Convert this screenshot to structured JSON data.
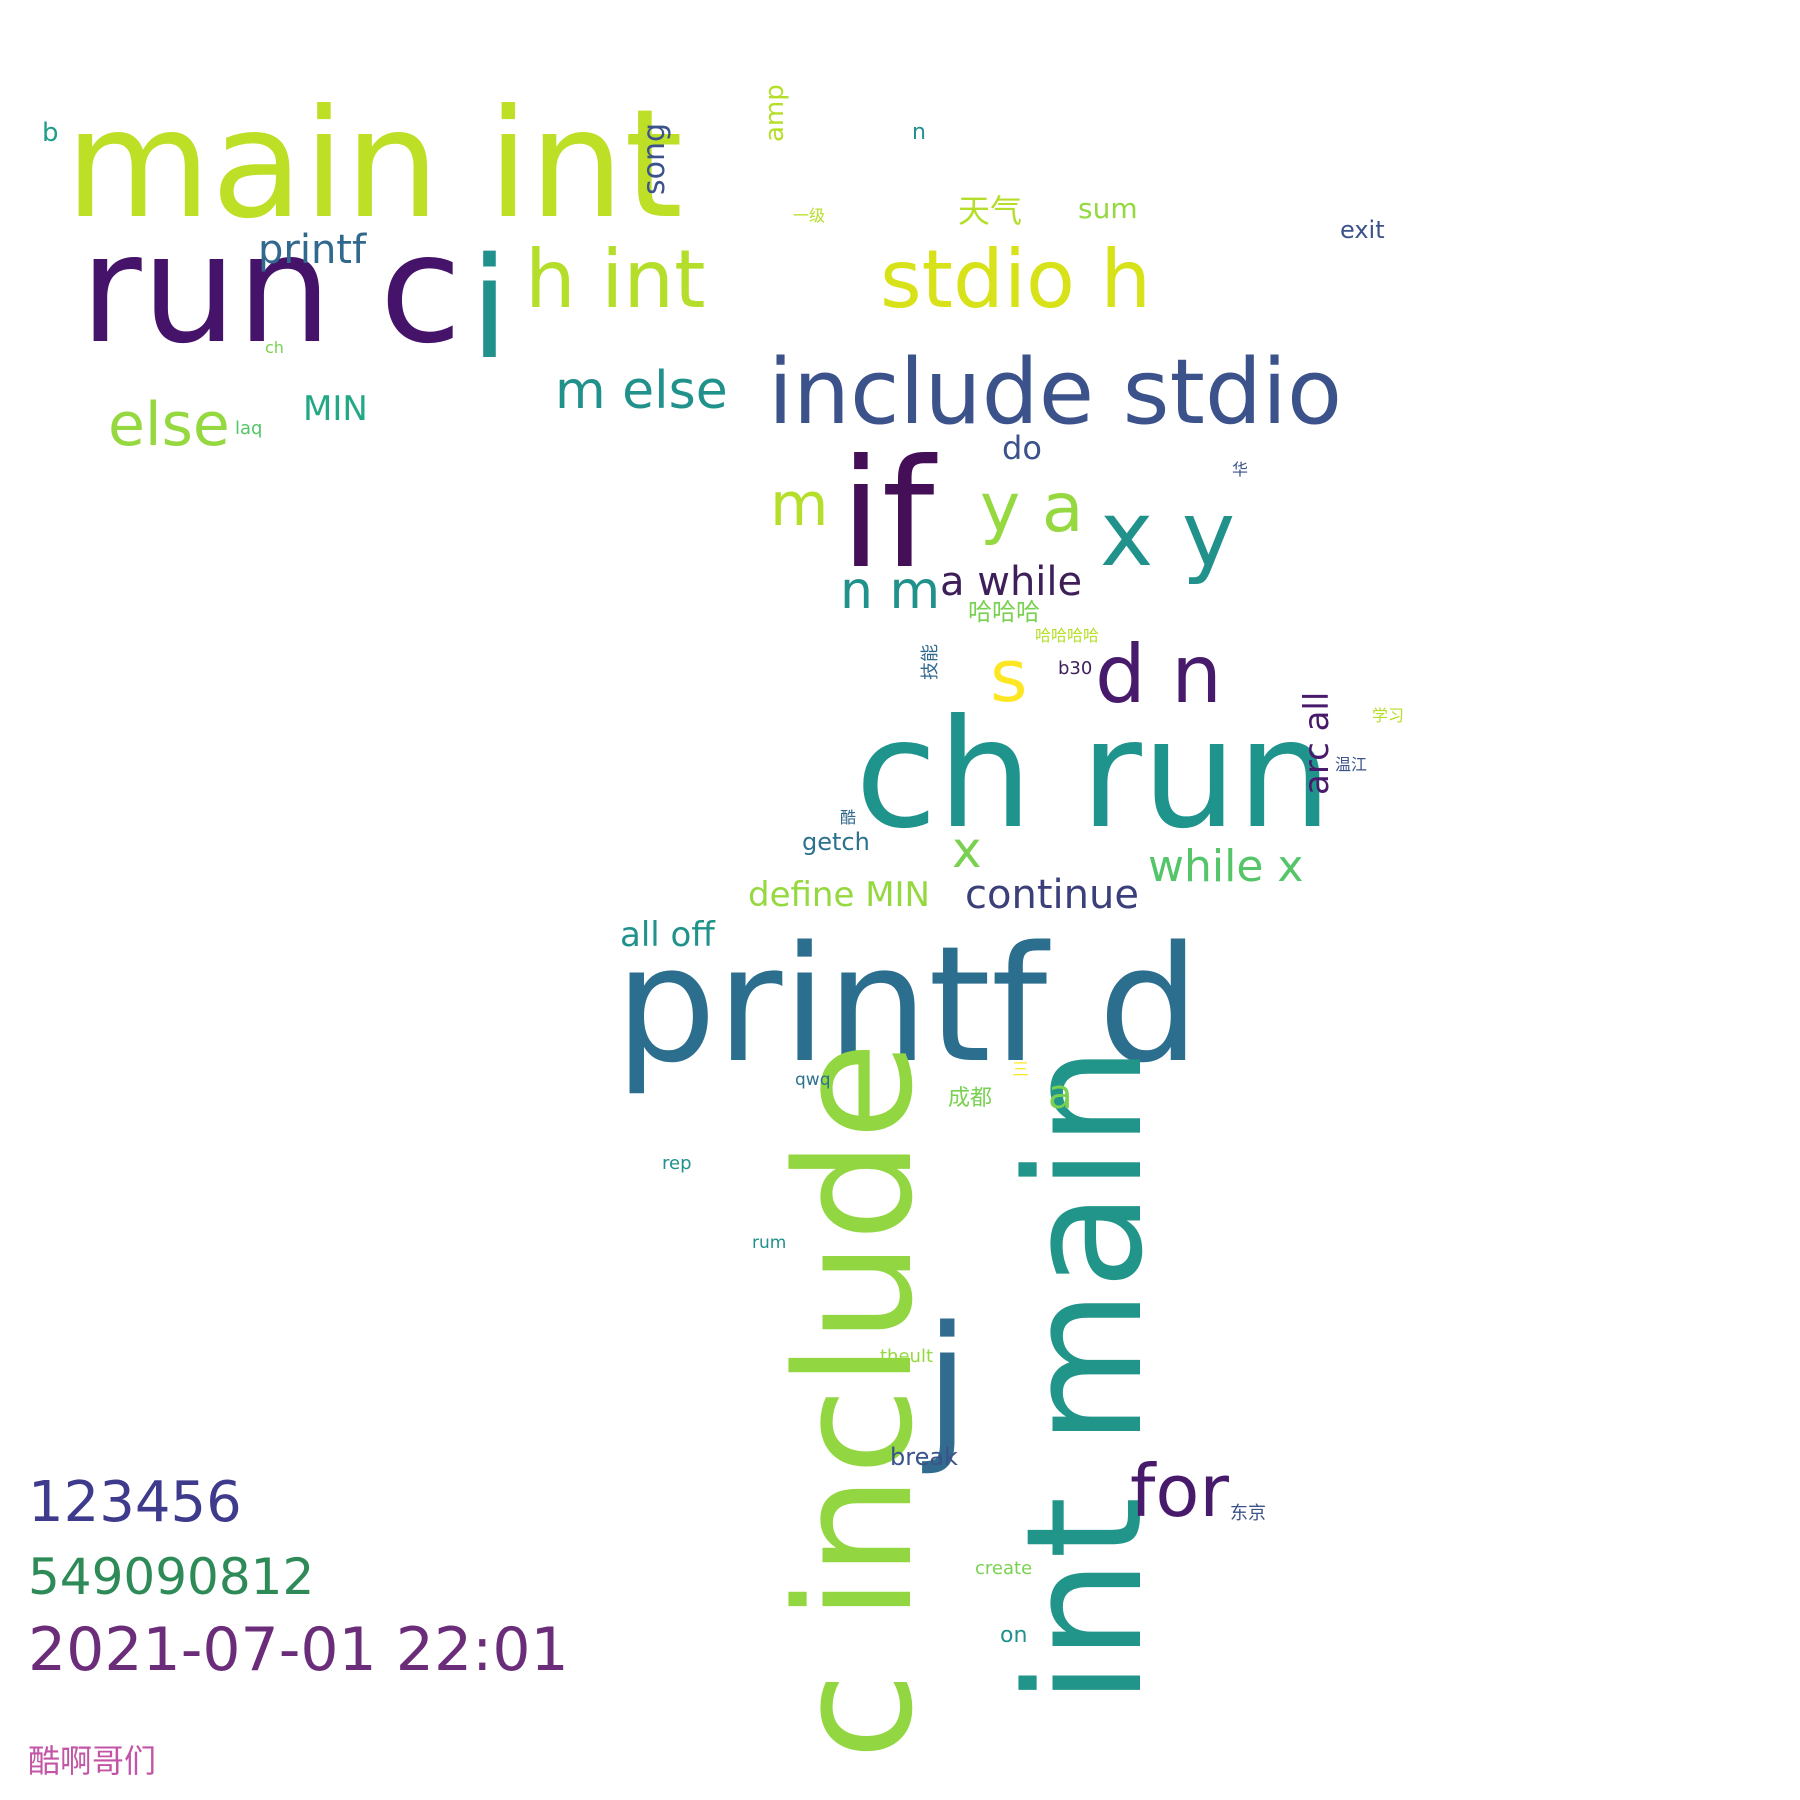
{
  "word_cloud": {
    "words": [
      {
        "text": "main int",
        "color": "#bddf26"
      },
      {
        "text": "run c",
        "color": "#46136a"
      },
      {
        "text": "i",
        "color": "#21918c"
      },
      {
        "text": "h int",
        "color": "#b5de2b"
      },
      {
        "text": "stdio h",
        "color": "#d8e219"
      },
      {
        "text": "include stdio",
        "color": "#3b528b"
      },
      {
        "text": "if",
        "color": "#440f56"
      },
      {
        "text": "y a",
        "color": "#95d840"
      },
      {
        "text": "x y",
        "color": "#21918c"
      },
      {
        "text": "m",
        "color": "#b5de2b"
      },
      {
        "text": "n m",
        "color": "#21918c"
      },
      {
        "text": "a while",
        "color": "#3e1f5a"
      },
      {
        "text": "s",
        "color": "#fde725"
      },
      {
        "text": "d n",
        "color": "#481a6c"
      },
      {
        "text": "ch run",
        "color": "#1f948c"
      },
      {
        "text": "printf d",
        "color": "#2c6e8e"
      },
      {
        "text": "c include",
        "color": "#92d742"
      },
      {
        "text": "int main",
        "color": "#22958b"
      },
      {
        "text": "j",
        "color": "#316c8e"
      },
      {
        "text": "for",
        "color": "#481a6c"
      },
      {
        "text": "else",
        "color": "#95d840"
      },
      {
        "text": "m else",
        "color": "#21918c"
      },
      {
        "text": "printf",
        "color": "#31688e"
      },
      {
        "text": "MIN",
        "color": "#22a884"
      },
      {
        "text": "song",
        "color": "#3b528b"
      },
      {
        "text": "amp",
        "color": "#b5de2b"
      },
      {
        "text": "b",
        "color": "#1f9e89"
      },
      {
        "text": "n",
        "color": "#21918c"
      },
      {
        "text": "天气",
        "color": "#b5de2b"
      },
      {
        "text": "sum",
        "color": "#95d840"
      },
      {
        "text": "一级",
        "color": "#b5de2b"
      },
      {
        "text": "exit",
        "color": "#3b528b"
      },
      {
        "text": "ch",
        "color": "#7ad151"
      },
      {
        "text": "laq",
        "color": "#54c568"
      },
      {
        "text": "do",
        "color": "#3b528b"
      },
      {
        "text": "华",
        "color": "#3b528b"
      },
      {
        "text": "哈哈哈",
        "color": "#7ad151"
      },
      {
        "text": "哈哈哈哈",
        "color": "#b5de2b"
      },
      {
        "text": "技能",
        "color": "#31688e"
      },
      {
        "text": "b30",
        "color": "#3e1f5a"
      },
      {
        "text": "arc all",
        "color": "#481a6c"
      },
      {
        "text": "学习",
        "color": "#b5de2b"
      },
      {
        "text": "温江",
        "color": "#3b528b"
      },
      {
        "text": "酷",
        "color": "#31688e"
      },
      {
        "text": "getch",
        "color": "#2c728e"
      },
      {
        "text": "x",
        "color": "#7ad151"
      },
      {
        "text": "while x",
        "color": "#54c568"
      },
      {
        "text": "define MIN",
        "color": "#95d840"
      },
      {
        "text": "continue",
        "color": "#3b3f7a"
      },
      {
        "text": "all off",
        "color": "#21918c"
      },
      {
        "text": "qwq",
        "color": "#2c728e"
      },
      {
        "text": "三",
        "color": "#fde725"
      },
      {
        "text": "成都",
        "color": "#7ad151"
      },
      {
        "text": "a",
        "color": "#7ad151"
      },
      {
        "text": "rep",
        "color": "#21918c"
      },
      {
        "text": "rum",
        "color": "#21918c"
      },
      {
        "text": "theult",
        "color": "#95d840"
      },
      {
        "text": "break",
        "color": "#3b528b"
      },
      {
        "text": "东京",
        "color": "#3b528b"
      },
      {
        "text": "create",
        "color": "#7ad151"
      },
      {
        "text": "on",
        "color": "#21918c"
      }
    ]
  },
  "footer": {
    "line1": "123456",
    "line2": "549090812",
    "line3": "2021-07-01 22:01",
    "line4": "酷啊哥们",
    "colors": {
      "line1": "#3e3a8c",
      "line2": "#2e8b57",
      "line3": "#6b2d7a",
      "line4": "#c355a6"
    }
  }
}
